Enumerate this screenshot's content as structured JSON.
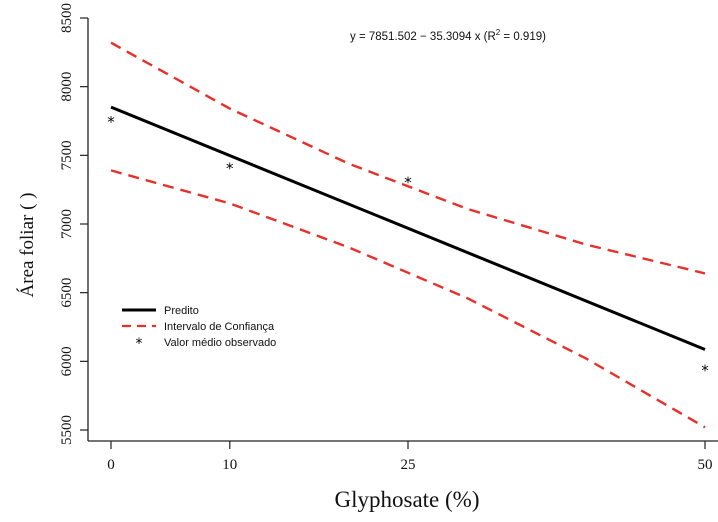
{
  "chart_data": {
    "type": "line",
    "xlabel": "Glyphosate (%)",
    "ylabel": "Área foliar ( )",
    "x_ticks": [
      0,
      10,
      25,
      50
    ],
    "y_ticks": [
      5500,
      6000,
      6500,
      7000,
      7500,
      8000,
      8500
    ],
    "xlim": [
      -1,
      50
    ],
    "ylim": [
      5430,
      8600
    ],
    "equation": {
      "prefix": "y = 7851.502 − 35.3094 x  (R",
      "superscript": "2",
      "suffix": " = 0.919)"
    },
    "legend": {
      "placement": "left-middle",
      "entries": [
        {
          "label": "Predito",
          "style": "solid",
          "color": "#000000"
        },
        {
          "label": "Intervalo de Confiança",
          "style": "dashed",
          "color": "#e8302a"
        },
        {
          "label": "Valor médio observado",
          "style": "marker",
          "color": "#000000"
        }
      ]
    },
    "series": [
      {
        "name": "Predito",
        "style": "solid",
        "color": "#000000",
        "x": [
          0,
          50
        ],
        "y": [
          7851.502,
          6086.03
        ]
      },
      {
        "name": "Intervalo de Confiança",
        "part": "upper",
        "style": "dashed",
        "color": "#e8302a",
        "x": [
          0,
          10,
          20,
          30,
          40,
          50
        ],
        "y": [
          8320,
          7840,
          7440,
          7110,
          6850,
          6640
        ]
      },
      {
        "name": "Intervalo de Confiança",
        "part": "lower",
        "style": "dashed",
        "color": "#e8302a",
        "x": [
          0,
          10,
          20,
          30,
          40,
          50
        ],
        "y": [
          7390,
          7150,
          6830,
          6460,
          6020,
          5520
        ]
      },
      {
        "name": "Valor médio observado",
        "style": "marker",
        "color": "#000000",
        "x": [
          0,
          10,
          25,
          50
        ],
        "y": [
          7750,
          7410,
          7310,
          5940
        ]
      }
    ]
  }
}
